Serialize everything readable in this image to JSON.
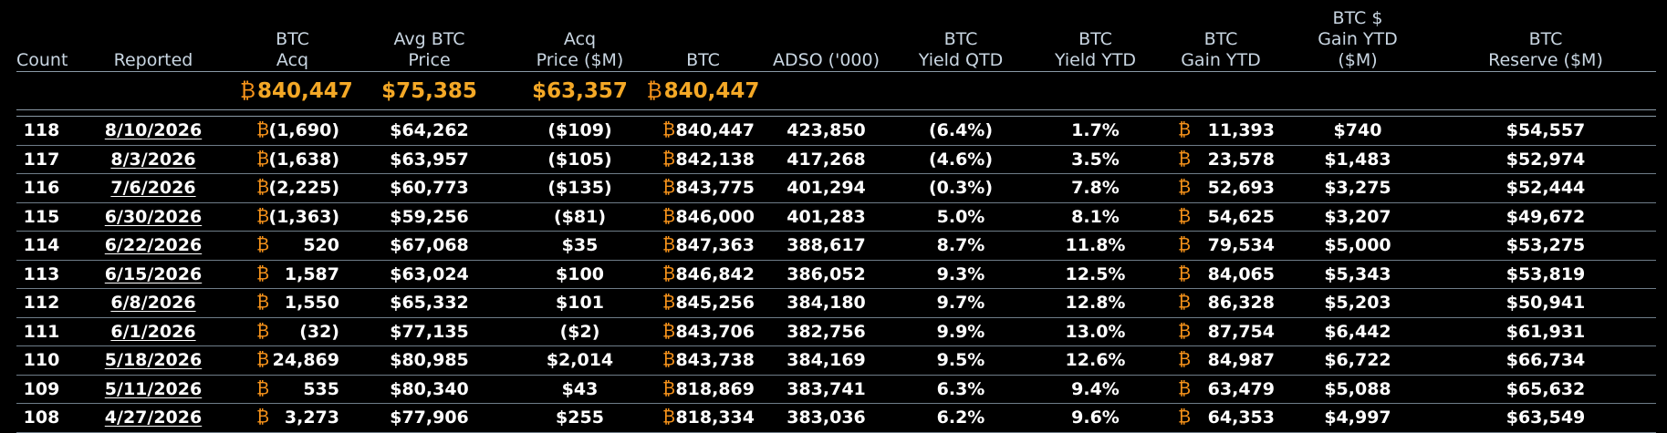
{
  "colors": {
    "background": "#000000",
    "header_text": "#c9d6e2",
    "summary_accent": "#f4a826",
    "btc_symbol": "#f7931a",
    "text": "#ffffff"
  },
  "headers": {
    "count": "Count",
    "reported": "Reported",
    "btc_acq": "BTC\nAcq",
    "avg_btc_price": "Avg BTC\nPrice",
    "acq_price": "Acq\nPrice ($M)",
    "btc": "BTC",
    "adso": "ADSO ('000)",
    "btc_yield_qtd": "BTC\nYield QTD",
    "btc_yield_ytd": "BTC\nYield YTD",
    "btc_gain_ytd": "BTC\nGain YTD",
    "btc_usd_gain_ytd": "BTC $\nGain YTD\n($M)",
    "btc_reserve": "BTC\nReserve ($M)"
  },
  "btc_symbol": "₿",
  "summary": {
    "btc_acq": "840,447",
    "avg_btc_price": "$75,385",
    "acq_price": "$63,357",
    "btc": "840,447"
  },
  "rows": [
    {
      "count": "118",
      "reported": "8/10/2026",
      "btc_acq": "(1,690)",
      "avg_price": "$64,262",
      "acq_price": "($109)",
      "btc": "840,447",
      "adso": "423,850",
      "yield_qtd": "(6.4%)",
      "yield_ytd": "1.7%",
      "gain_ytd": "11,393",
      "usd_gain_ytd": "$740",
      "reserve": "$54,557"
    },
    {
      "count": "117",
      "reported": "8/3/2026",
      "btc_acq": "(1,638)",
      "avg_price": "$63,957",
      "acq_price": "($105)",
      "btc": "842,138",
      "adso": "417,268",
      "yield_qtd": "(4.6%)",
      "yield_ytd": "3.5%",
      "gain_ytd": "23,578",
      "usd_gain_ytd": "$1,483",
      "reserve": "$52,974"
    },
    {
      "count": "116",
      "reported": "7/6/2026",
      "btc_acq": "(2,225)",
      "avg_price": "$60,773",
      "acq_price": "($135)",
      "btc": "843,775",
      "adso": "401,294",
      "yield_qtd": "(0.3%)",
      "yield_ytd": "7.8%",
      "gain_ytd": "52,693",
      "usd_gain_ytd": "$3,275",
      "reserve": "$52,444"
    },
    {
      "count": "115",
      "reported": "6/30/2026",
      "btc_acq": "(1,363)",
      "avg_price": "$59,256",
      "acq_price": "($81)",
      "btc": "846,000",
      "adso": "401,283",
      "yield_qtd": "5.0%",
      "yield_ytd": "8.1%",
      "gain_ytd": "54,625",
      "usd_gain_ytd": "$3,207",
      "reserve": "$49,672"
    },
    {
      "count": "114",
      "reported": "6/22/2026",
      "btc_acq": "520",
      "avg_price": "$67,068",
      "acq_price": "$35",
      "btc": "847,363",
      "adso": "388,617",
      "yield_qtd": "8.7%",
      "yield_ytd": "11.8%",
      "gain_ytd": "79,534",
      "usd_gain_ytd": "$5,000",
      "reserve": "$53,275"
    },
    {
      "count": "113",
      "reported": "6/15/2026",
      "btc_acq": "1,587",
      "avg_price": "$63,024",
      "acq_price": "$100",
      "btc": "846,842",
      "adso": "386,052",
      "yield_qtd": "9.3%",
      "yield_ytd": "12.5%",
      "gain_ytd": "84,065",
      "usd_gain_ytd": "$5,343",
      "reserve": "$53,819"
    },
    {
      "count": "112",
      "reported": "6/8/2026",
      "btc_acq": "1,550",
      "avg_price": "$65,332",
      "acq_price": "$101",
      "btc": "845,256",
      "adso": "384,180",
      "yield_qtd": "9.7%",
      "yield_ytd": "12.8%",
      "gain_ytd": "86,328",
      "usd_gain_ytd": "$5,203",
      "reserve": "$50,941"
    },
    {
      "count": "111",
      "reported": "6/1/2026",
      "btc_acq": "(32)",
      "avg_price": "$77,135",
      "acq_price": "($2)",
      "btc": "843,706",
      "adso": "382,756",
      "yield_qtd": "9.9%",
      "yield_ytd": "13.0%",
      "gain_ytd": "87,754",
      "usd_gain_ytd": "$6,442",
      "reserve": "$61,931"
    },
    {
      "count": "110",
      "reported": "5/18/2026",
      "btc_acq": "24,869",
      "avg_price": "$80,985",
      "acq_price": "$2,014",
      "btc": "843,738",
      "adso": "384,169",
      "yield_qtd": "9.5%",
      "yield_ytd": "12.6%",
      "gain_ytd": "84,987",
      "usd_gain_ytd": "$6,722",
      "reserve": "$66,734"
    },
    {
      "count": "109",
      "reported": "5/11/2026",
      "btc_acq": "535",
      "avg_price": "$80,340",
      "acq_price": "$43",
      "btc": "818,869",
      "adso": "383,741",
      "yield_qtd": "6.3%",
      "yield_ytd": "9.4%",
      "gain_ytd": "63,479",
      "usd_gain_ytd": "$5,088",
      "reserve": "$65,632"
    },
    {
      "count": "108",
      "reported": "4/27/2026",
      "btc_acq": "3,273",
      "avg_price": "$77,906",
      "acq_price": "$255",
      "btc": "818,334",
      "adso": "383,036",
      "yield_qtd": "6.2%",
      "yield_ytd": "9.6%",
      "gain_ytd": "64,353",
      "usd_gain_ytd": "$4,997",
      "reserve": "$63,549"
    }
  ]
}
